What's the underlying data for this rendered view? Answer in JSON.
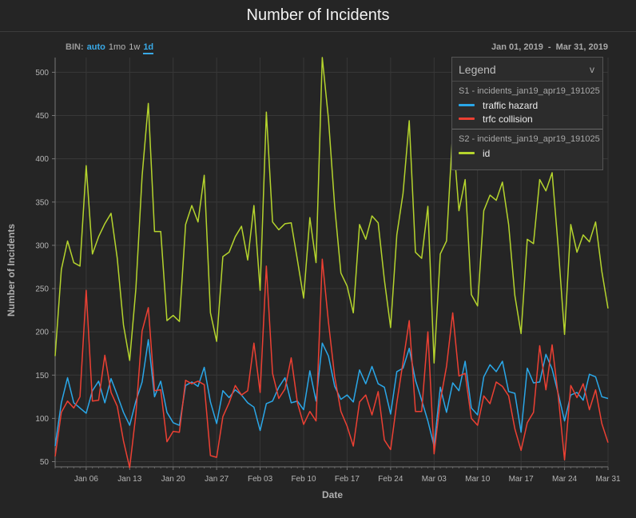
{
  "header": {
    "title": "Number of Incidents"
  },
  "bin": {
    "label": "BIN:",
    "options": [
      "auto",
      "1mo",
      "1w",
      "1d"
    ],
    "selected": "1d"
  },
  "date_range": {
    "start": "Jan 01, 2019",
    "separator": "-",
    "end": "Mar 31, 2019"
  },
  "legend": {
    "title": "Legend",
    "chevron": "v",
    "groups": [
      {
        "source": "S1 - incidents_jan19_apr19_191025",
        "entries": [
          {
            "name": "traffic hazard",
            "color": "#2aa7e8"
          },
          {
            "name": "trfc collision",
            "color": "#ec4033"
          }
        ]
      },
      {
        "source": "S2 - incidents_jan19_apr19_191025",
        "entries": [
          {
            "name": "id",
            "color": "#b5d42d"
          }
        ]
      }
    ]
  },
  "chart_data": {
    "type": "line",
    "xlabel": "Date",
    "ylabel": "Number of Incidents",
    "x_start": "2019-01-01",
    "x_end": "2019-03-31",
    "x_tick_labels": [
      "Jan 06",
      "Jan 13",
      "Jan 20",
      "Jan 27",
      "Feb 03",
      "Feb 10",
      "Feb 17",
      "Feb 24",
      "Mar 03",
      "Mar 10",
      "Mar 17",
      "Mar 24",
      "Mar 31"
    ],
    "y_ticks": [
      50,
      100,
      150,
      200,
      250,
      300,
      350,
      400,
      450,
      500
    ],
    "ylim": [
      44,
      517
    ],
    "grid": true,
    "legend_position": "top-right",
    "series": [
      {
        "name": "id",
        "color": "#b5d42d",
        "values": [
          172,
          272,
          305,
          280,
          276,
          392,
          290,
          310,
          325,
          337,
          285,
          208,
          167,
          250,
          380,
          464,
          316,
          316,
          213,
          219,
          212,
          324,
          346,
          327,
          381,
          222,
          189,
          287,
          292,
          310,
          322,
          283,
          346,
          248,
          454,
          327,
          318,
          325,
          326,
          283,
          239,
          332,
          280,
          517,
          446,
          345,
          268,
          253,
          222,
          324,
          307,
          334,
          326,
          260,
          205,
          312,
          360,
          444,
          292,
          285,
          345,
          164,
          290,
          305,
          432,
          340,
          376,
          243,
          230,
          340,
          358,
          352,
          373,
          324,
          242,
          198,
          307,
          302,
          376,
          363,
          384,
          296,
          197,
          324,
          292,
          312,
          304,
          327,
          270,
          227
        ]
      },
      {
        "name": "traffic hazard",
        "color": "#2aa7e8",
        "values": [
          68,
          118,
          147,
          118,
          112,
          106,
          132,
          143,
          118,
          146,
          127,
          107,
          92,
          120,
          142,
          191,
          125,
          143,
          107,
          95,
          92,
          138,
          142,
          137,
          159,
          119,
          94,
          132,
          124,
          133,
          127,
          118,
          113,
          86,
          117,
          120,
          136,
          147,
          118,
          120,
          110,
          155,
          120,
          187,
          172,
          137,
          122,
          127,
          119,
          156,
          140,
          160,
          140,
          136,
          105,
          154,
          158,
          181,
          144,
          121,
          97,
          68,
          136,
          107,
          141,
          132,
          166,
          112,
          104,
          148,
          162,
          154,
          166,
          131,
          129,
          84,
          158,
          141,
          142,
          174,
          157,
          128,
          97,
          127,
          130,
          121,
          151,
          148,
          125,
          123
        ]
      },
      {
        "name": "trfc collision",
        "color": "#ec4033",
        "values": [
          56,
          107,
          120,
          112,
          125,
          248,
          120,
          121,
          173,
          130,
          114,
          74,
          43,
          105,
          201,
          228,
          132,
          133,
          73,
          85,
          84,
          144,
          140,
          143,
          139,
          57,
          55,
          102,
          118,
          138,
          127,
          132,
          187,
          130,
          276,
          152,
          123,
          134,
          170,
          118,
          93,
          108,
          97,
          284,
          211,
          148,
          108,
          91,
          68,
          119,
          127,
          104,
          131,
          75,
          64,
          118,
          165,
          213,
          108,
          108,
          200,
          59,
          120,
          160,
          222,
          149,
          152,
          100,
          92,
          126,
          117,
          142,
          137,
          126,
          88,
          63,
          95,
          107,
          184,
          133,
          185,
          125,
          52,
          138,
          124,
          140,
          110,
          133,
          94,
          72
        ]
      }
    ]
  }
}
